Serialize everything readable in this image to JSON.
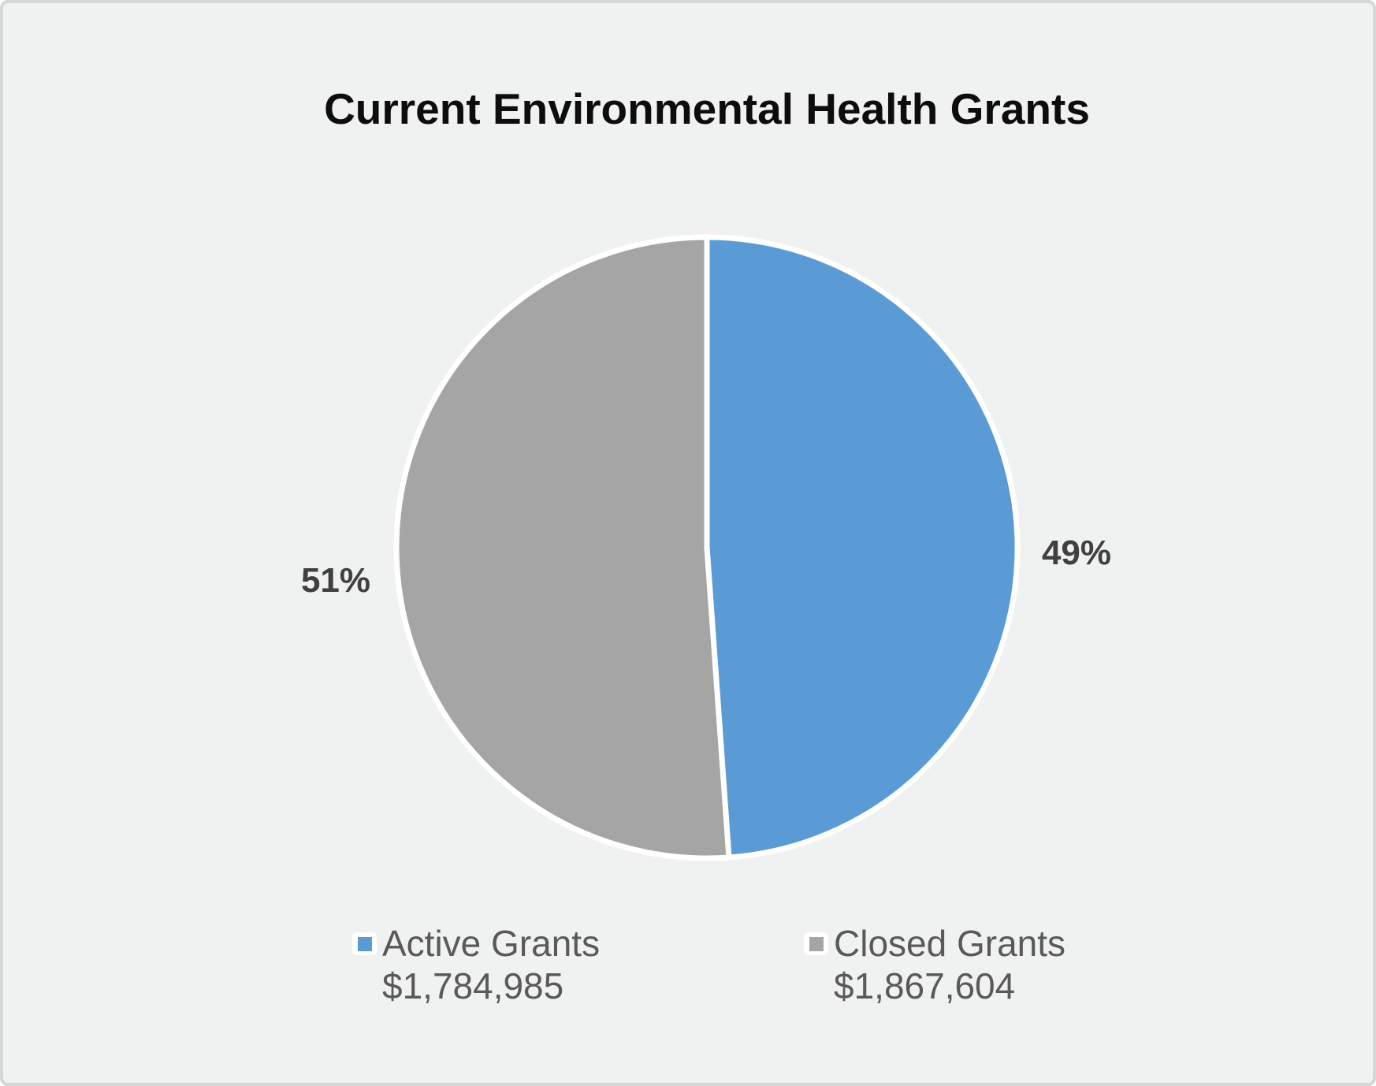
{
  "chart_data": {
    "type": "pie",
    "title": "Current Environmental Health Grants",
    "legend_position": "bottom",
    "start_angle_deg": 0,
    "direction": "clockwise",
    "slices": [
      {
        "label": "Active Grants",
        "value": 1784985,
        "value_label": "$1,784,985",
        "percent": 49,
        "percent_label": "49%",
        "color": "#5B9BD5"
      },
      {
        "label": "Closed Grants",
        "value": 1867604,
        "value_label": "$1,867,604",
        "percent": 51,
        "percent_label": "51%",
        "color": "#A5A5A5"
      }
    ],
    "colors": {
      "background": "#F0F1F1",
      "border": "#D5D7D7",
      "title_text": "#0D0D0D",
      "percent_label_text": "#404040",
      "legend_text": "#595959",
      "slice_outline": "#FFFFFF"
    }
  }
}
